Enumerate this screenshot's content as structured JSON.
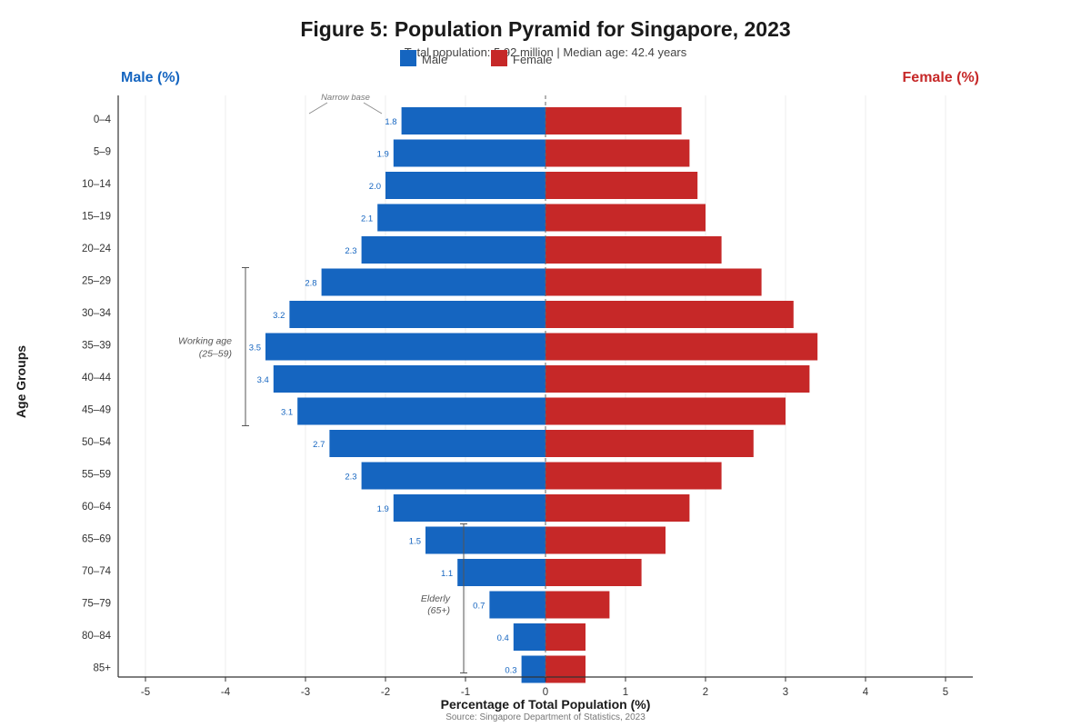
{
  "chart_data": {
    "type": "bar",
    "orientation": "horizontal",
    "title": "Figure 5: Population Pyramid for Singapore, 2023",
    "subtitle": "Total population: 5.92 million | Median age: 42.4 years",
    "xlabel": "Percentage of Total Population (%)",
    "ylabel": "Age Groups",
    "left_label": "Male (%)",
    "right_label": "Female (%)",
    "source": "Source: Singapore Department of Statistics, 2023",
    "xlim": [
      -5.5,
      5.5
    ],
    "xticks": [
      -5,
      -4,
      -3,
      -2,
      -1,
      0,
      1,
      2,
      3,
      4,
      5
    ],
    "grid": "vertical",
    "legend_position": "top",
    "categories": [
      "0–4",
      "5–9",
      "10–14",
      "15–19",
      "20–24",
      "25–29",
      "30–34",
      "35–39",
      "40–44",
      "45–49",
      "50–54",
      "55–59",
      "60–64",
      "65–69",
      "70–74",
      "75–79",
      "80–84",
      "85+"
    ],
    "series": [
      {
        "name": "Male",
        "color": "#1565c0",
        "values": [
          1.8,
          1.9,
          2.0,
          2.1,
          2.3,
          2.8,
          3.2,
          3.5,
          3.4,
          3.1,
          2.7,
          2.3,
          1.9,
          1.5,
          1.1,
          0.7,
          0.4,
          0.3
        ]
      },
      {
        "name": "Female",
        "color": "#c62828",
        "values": [
          1.7,
          1.8,
          1.9,
          2.0,
          2.2,
          2.7,
          3.1,
          3.4,
          3.3,
          3.0,
          2.6,
          2.2,
          1.8,
          1.5,
          1.2,
          0.8,
          0.5,
          0.5
        ]
      }
    ],
    "data_labels": [
      "1.8",
      "1.9",
      "2.0",
      "2.1",
      "2.3",
      "2.8",
      "3.2",
      "3.5",
      "3.4",
      "3.1",
      "2.7",
      "2.3",
      "1.9",
      "1.5",
      "1.1",
      "0.7",
      "0.4",
      "0.3"
    ],
    "annotations": [
      {
        "lines": [
          "Narrow base"
        ],
        "style": "small"
      },
      {
        "lines": [
          "Working age",
          "(25–59)"
        ],
        "from": "25–29",
        "to": "45–49"
      },
      {
        "lines": [
          "Elderly",
          "(65+)"
        ],
        "from": "65–69",
        "to": "85+"
      }
    ]
  }
}
